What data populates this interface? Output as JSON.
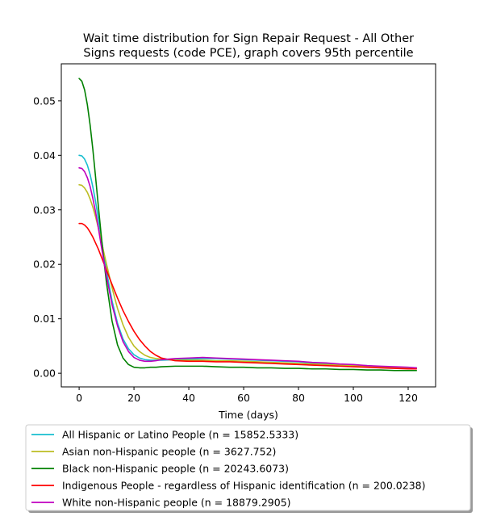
{
  "chart_data": {
    "type": "line",
    "title_lines": [
      "Wait time distribution  for Sign Repair Request - All Other",
      "Signs  requests (code PCE), graph covers 95th percentile"
    ],
    "xlabel": "Time (days)",
    "ylabel": "",
    "xlim": [
      -6.5,
      130
    ],
    "ylim": [
      -0.0025,
      0.0568
    ],
    "x_ticks": [
      0,
      20,
      40,
      60,
      80,
      100,
      120
    ],
    "y_ticks": [
      0.0,
      0.01,
      0.02,
      0.03,
      0.04,
      0.05
    ],
    "y_tick_labels": [
      "0.00",
      "0.01",
      "0.02",
      "0.03",
      "0.04",
      "0.05"
    ],
    "grid": false,
    "legend_position": "below-center",
    "series": [
      {
        "name": "All Hispanic or Latino People (n = 15852.5333)",
        "color": "#17becf",
        "x": [
          0,
          1,
          2,
          3,
          4,
          5,
          6,
          7,
          8,
          9,
          10,
          12,
          14,
          16,
          18,
          20,
          22,
          24,
          26,
          28,
          30,
          35,
          40,
          45,
          50,
          55,
          60,
          65,
          70,
          75,
          80,
          85,
          90,
          95,
          100,
          105,
          110,
          115,
          120,
          123
        ],
        "y": [
          0.04,
          0.0399,
          0.0393,
          0.0382,
          0.0365,
          0.0342,
          0.0315,
          0.0284,
          0.0251,
          0.0218,
          0.0187,
          0.0133,
          0.0092,
          0.0063,
          0.0045,
          0.0034,
          0.0028,
          0.0025,
          0.0024,
          0.0024,
          0.0024,
          0.0025,
          0.0026,
          0.0027,
          0.0027,
          0.0026,
          0.0025,
          0.0024,
          0.0023,
          0.0022,
          0.0021,
          0.0019,
          0.0018,
          0.0016,
          0.0015,
          0.0014,
          0.0012,
          0.0011,
          0.001,
          0.001
        ]
      },
      {
        "name": "Asian non-Hispanic people (n = 3627.752)",
        "color": "#bcbd22",
        "x": [
          0,
          1,
          2,
          3,
          4,
          5,
          6,
          7,
          8,
          9,
          10,
          12,
          14,
          16,
          18,
          20,
          22,
          24,
          26,
          28,
          30,
          35,
          40,
          45,
          50,
          55,
          60,
          65,
          70,
          75,
          80,
          85,
          90,
          95,
          100,
          105,
          110,
          115,
          120,
          123
        ],
        "y": [
          0.0346,
          0.0345,
          0.034,
          0.0332,
          0.032,
          0.0305,
          0.0287,
          0.0267,
          0.0245,
          0.0222,
          0.02,
          0.0157,
          0.0119,
          0.0089,
          0.0066,
          0.005,
          0.004,
          0.0033,
          0.0029,
          0.0027,
          0.0026,
          0.0024,
          0.0024,
          0.0024,
          0.0023,
          0.0023,
          0.0022,
          0.0021,
          0.002,
          0.0019,
          0.0018,
          0.0017,
          0.0016,
          0.0015,
          0.0014,
          0.0013,
          0.0012,
          0.0011,
          0.001,
          0.001
        ]
      },
      {
        "name": "Black non-Hispanic people (n = 20243.6073)",
        "color": "#008000",
        "x": [
          0,
          1,
          2,
          3,
          4,
          5,
          6,
          7,
          8,
          9,
          10,
          12,
          14,
          16,
          18,
          20,
          22,
          24,
          26,
          28,
          30,
          35,
          40,
          45,
          50,
          55,
          60,
          65,
          70,
          75,
          80,
          85,
          90,
          95,
          100,
          105,
          110,
          115,
          120,
          123
        ],
        "y": [
          0.0541,
          0.0536,
          0.052,
          0.0493,
          0.0456,
          0.0411,
          0.036,
          0.0307,
          0.0256,
          0.0208,
          0.0165,
          0.0096,
          0.0052,
          0.0028,
          0.0016,
          0.0011,
          0.001,
          0.001,
          0.0011,
          0.0011,
          0.0012,
          0.0013,
          0.0013,
          0.0013,
          0.0012,
          0.0011,
          0.0011,
          0.001,
          0.001,
          0.0009,
          0.0009,
          0.0008,
          0.0008,
          0.0007,
          0.0007,
          0.0006,
          0.0006,
          0.0005,
          0.0005,
          0.0005
        ]
      },
      {
        "name": "Indigenous People - regardless of Hispanic identification (n = 200.0238)",
        "color": "#ff0000",
        "x": [
          0,
          1,
          2,
          3,
          4,
          5,
          6,
          7,
          8,
          9,
          10,
          12,
          14,
          16,
          18,
          20,
          22,
          24,
          26,
          28,
          30,
          35,
          40,
          45,
          50,
          55,
          60,
          65,
          70,
          75,
          80,
          85,
          90,
          95,
          100,
          105,
          110,
          115,
          120,
          123
        ],
        "y": [
          0.0275,
          0.0275,
          0.0272,
          0.0267,
          0.0259,
          0.025,
          0.0239,
          0.0228,
          0.0215,
          0.0202,
          0.0189,
          0.0163,
          0.0138,
          0.0115,
          0.0095,
          0.0077,
          0.0062,
          0.005,
          0.004,
          0.0033,
          0.0028,
          0.0023,
          0.0022,
          0.0022,
          0.0021,
          0.0021,
          0.002,
          0.0019,
          0.0018,
          0.0017,
          0.0016,
          0.0015,
          0.0014,
          0.0013,
          0.0012,
          0.0011,
          0.001,
          0.0009,
          0.0008,
          0.0008
        ]
      },
      {
        "name": "White non-Hispanic people (n = 18879.2905)",
        "color": "#bf00bf",
        "x": [
          0,
          1,
          2,
          3,
          4,
          5,
          6,
          7,
          8,
          9,
          10,
          12,
          14,
          16,
          18,
          20,
          22,
          24,
          26,
          28,
          30,
          35,
          40,
          45,
          50,
          55,
          60,
          65,
          70,
          75,
          80,
          85,
          90,
          95,
          100,
          105,
          110,
          115,
          120,
          123
        ],
        "y": [
          0.0377,
          0.0376,
          0.037,
          0.0359,
          0.0343,
          0.0321,
          0.0296,
          0.0267,
          0.0236,
          0.0206,
          0.0177,
          0.0126,
          0.0087,
          0.0058,
          0.004,
          0.0029,
          0.0024,
          0.0022,
          0.0022,
          0.0023,
          0.0025,
          0.0027,
          0.0028,
          0.0029,
          0.0028,
          0.0027,
          0.0026,
          0.0025,
          0.0024,
          0.0023,
          0.0022,
          0.002,
          0.0019,
          0.0017,
          0.0016,
          0.0014,
          0.0013,
          0.0012,
          0.0011,
          0.001
        ]
      }
    ]
  }
}
